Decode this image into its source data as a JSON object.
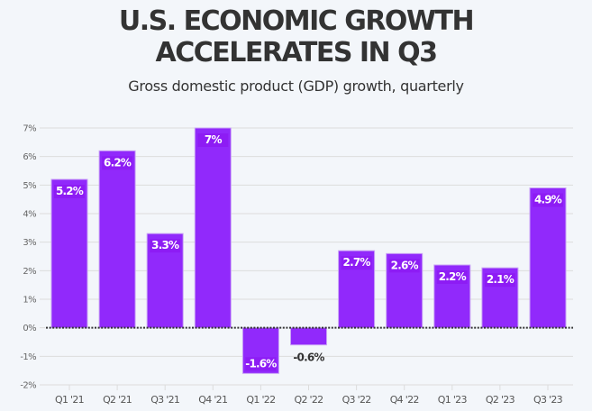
{
  "header": {
    "title_line1": "U.S. ECONOMIC GROWTH",
    "title_line2": "ACCELERATES IN Q3",
    "subtitle": "Gross domestic product (GDP) growth, quarterly"
  },
  "colors": {
    "bar": "#9129fb",
    "bar_border": "#c9a4f5",
    "label_inside": "#ffffff",
    "label_outside": "#333333",
    "grid": "#dcdcdc",
    "background": "#f3f6fa"
  },
  "chart_data": {
    "type": "bar",
    "title": "U.S. ECONOMIC GROWTH ACCELERATES IN Q3",
    "subtitle": "Gross domestic product (GDP) growth, quarterly",
    "xlabel": "",
    "ylabel": "",
    "categories": [
      "Q1 '21",
      "Q2 '21",
      "Q3 '21",
      "Q4 '21",
      "Q1 '22",
      "Q2 '22",
      "Q3 '22",
      "Q4 '22",
      "Q1 '23",
      "Q2 '23",
      "Q3 '23"
    ],
    "values": [
      5.2,
      6.2,
      3.3,
      7.0,
      -1.6,
      -0.6,
      2.7,
      2.6,
      2.2,
      2.1,
      4.9
    ],
    "data_labels": [
      "5.2%",
      "6.2%",
      "3.3%",
      "7%",
      "-1.6%",
      "-0.6%",
      "2.7%",
      "2.6%",
      "2.2%",
      "2.1%",
      "4.9%"
    ],
    "ylim": [
      -2,
      7
    ],
    "yticks": [
      7,
      6,
      5,
      4,
      3,
      2,
      1,
      0,
      -1,
      -2
    ],
    "ytick_labels": [
      "7%",
      "6%",
      "5%",
      "4%",
      "3%",
      "2%",
      "1%",
      "0%",
      "-1%",
      "-2%"
    ],
    "grid": true,
    "zero_line": "dotted",
    "legend": "none"
  }
}
